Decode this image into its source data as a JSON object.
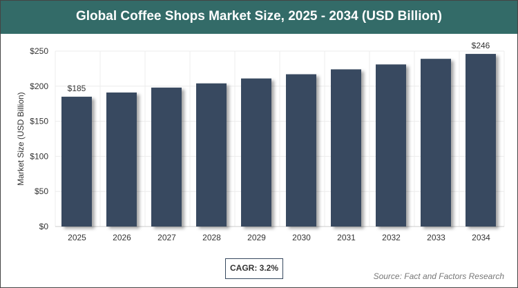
{
  "chart_data": {
    "type": "bar",
    "title": "Global Coffee Shops Market Size, 2025 - 2034 (USD Billion)",
    "xlabel": "",
    "ylabel": "Market Size (USD Billion)",
    "categories": [
      "2025",
      "2026",
      "2027",
      "2028",
      "2029",
      "2030",
      "2031",
      "2032",
      "2033",
      "2034"
    ],
    "values": [
      185,
      191,
      198,
      204,
      211,
      217,
      224,
      231,
      239,
      246
    ],
    "data_labels": {
      "0": "$185",
      "9": "$246"
    },
    "ylim": [
      0,
      250
    ],
    "yticks": [
      0,
      50,
      100,
      150,
      200,
      250
    ],
    "ytick_labels": [
      "$0",
      "$50",
      "$100",
      "$150",
      "$200",
      "$250"
    ],
    "grid": true,
    "bar_color": "#374a60"
  },
  "footer": {
    "cagr": "CAGR: 3.2%",
    "source": "Source: Fact and Factors Research"
  },
  "colors": {
    "header": "#336b68"
  }
}
